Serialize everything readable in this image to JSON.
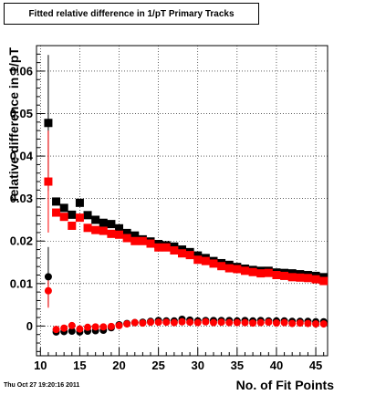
{
  "timestamp": "Thu Oct 27 19:20:16 2011",
  "chart_data": {
    "type": "scatter",
    "title": "Fitted relative difference in 1/pT Primary Tracks",
    "xlabel": "No. of Fit Points",
    "ylabel": "relative difference in 1/pT",
    "xlim": [
      9.5,
      46.5
    ],
    "ylim": [
      -0.007,
      0.066
    ],
    "x_ticks": [
      10,
      15,
      20,
      25,
      30,
      35,
      40,
      45
    ],
    "x_tick_labels": [
      "10",
      "15",
      "20",
      "25",
      "30",
      "35",
      "40",
      "45"
    ],
    "y_ticks": [
      0,
      0.01,
      0.02,
      0.03,
      0.04,
      0.05,
      0.06
    ],
    "y_tick_labels": [
      "0",
      "0.01",
      "0.02",
      "0.03",
      "0.04",
      "0.05",
      "0.06"
    ],
    "grid": true,
    "series": [
      {
        "color": "#000000",
        "marker": "square",
        "x": [
          11,
          12,
          13,
          14,
          15,
          16,
          17,
          18,
          19,
          20,
          21,
          22,
          23,
          24,
          25,
          26,
          27,
          28,
          29,
          30,
          31,
          32,
          33,
          34,
          35,
          36,
          37,
          38,
          39,
          40,
          41,
          42,
          43,
          44,
          45,
          46
        ],
        "y": [
          0.0478,
          0.0293,
          0.0278,
          0.0262,
          0.029,
          0.0261,
          0.025,
          0.0243,
          0.024,
          0.023,
          0.0219,
          0.0213,
          0.0204,
          0.0199,
          0.0193,
          0.019,
          0.0187,
          0.018,
          0.0174,
          0.0166,
          0.016,
          0.0153,
          0.0148,
          0.0144,
          0.0139,
          0.0135,
          0.0132,
          0.013,
          0.013,
          0.0126,
          0.0125,
          0.0124,
          0.0122,
          0.012,
          0.0118,
          0.0115
        ],
        "yerr": [
          0.016,
          0,
          0,
          0,
          0,
          0,
          0,
          0,
          0,
          0,
          0,
          0,
          0,
          0,
          0,
          0,
          0,
          0,
          0,
          0,
          0,
          0,
          0,
          0,
          0,
          0,
          0,
          0,
          0,
          0,
          0,
          0,
          0,
          0,
          0,
          0
        ]
      },
      {
        "color": "#ff0000",
        "marker": "square",
        "x": [
          11,
          12,
          13,
          14,
          15,
          16,
          17,
          18,
          19,
          20,
          21,
          22,
          23,
          24,
          25,
          26,
          27,
          28,
          29,
          30,
          31,
          32,
          33,
          34,
          35,
          36,
          37,
          38,
          39,
          40,
          41,
          42,
          43,
          44,
          45,
          46
        ],
        "y": [
          0.034,
          0.0267,
          0.0257,
          0.0236,
          0.0255,
          0.0231,
          0.0226,
          0.0224,
          0.0217,
          0.0215,
          0.0207,
          0.02,
          0.02,
          0.0194,
          0.0185,
          0.0185,
          0.0178,
          0.0171,
          0.0167,
          0.0156,
          0.0153,
          0.0147,
          0.0141,
          0.0136,
          0.0134,
          0.013,
          0.0127,
          0.0124,
          0.0125,
          0.012,
          0.0118,
          0.0115,
          0.0114,
          0.0113,
          0.011,
          0.0106
        ],
        "yerr": [
          0.012,
          0,
          0,
          0,
          0,
          0,
          0,
          0,
          0,
          0,
          0,
          0,
          0,
          0,
          0,
          0,
          0,
          0,
          0,
          0,
          0,
          0,
          0,
          0,
          0,
          0,
          0,
          0,
          0,
          0,
          0,
          0,
          0,
          0,
          0,
          0
        ]
      },
      {
        "color": "#000000",
        "marker": "circle",
        "x": [
          11,
          12,
          13,
          14,
          15,
          16,
          17,
          18,
          19,
          20,
          21,
          22,
          23,
          24,
          25,
          26,
          27,
          28,
          29,
          30,
          31,
          32,
          33,
          34,
          35,
          36,
          37,
          38,
          39,
          40,
          41,
          42,
          43,
          44,
          45,
          46
        ],
        "y": [
          0.0116,
          -0.0014,
          -0.0013,
          -0.0012,
          -0.0014,
          -0.0012,
          -0.0011,
          -0.001,
          -0.0004,
          0.0003,
          0.0006,
          0.0008,
          0.0009,
          0.0011,
          0.0013,
          0.0012,
          0.0012,
          0.0016,
          0.0014,
          0.0012,
          0.0013,
          0.0013,
          0.0013,
          0.0013,
          0.0012,
          0.0013,
          0.0012,
          0.0013,
          0.0012,
          0.0012,
          0.0012,
          0.0011,
          0.0011,
          0.0011,
          0.001,
          0.001
        ],
        "yerr": [
          0.007,
          0,
          0,
          0,
          0,
          0,
          0,
          0,
          0,
          0,
          0,
          0,
          0,
          0,
          0,
          0,
          0,
          0,
          0,
          0,
          0,
          0,
          0,
          0,
          0,
          0,
          0,
          0,
          0,
          0,
          0,
          0,
          0,
          0,
          0,
          0
        ]
      },
      {
        "color": "#ff0000",
        "marker": "circle",
        "x": [
          11,
          12,
          13,
          14,
          15,
          16,
          17,
          18,
          19,
          20,
          21,
          22,
          23,
          24,
          25,
          26,
          27,
          28,
          29,
          30,
          31,
          32,
          33,
          34,
          35,
          36,
          37,
          38,
          39,
          40,
          41,
          42,
          43,
          44,
          45,
          46
        ],
        "y": [
          0.0083,
          -0.0008,
          -0.0005,
          0.0001,
          -0.0007,
          -0.0003,
          -0.0002,
          -0.0002,
          -0.0001,
          0.0001,
          0.0005,
          0.0008,
          0.0007,
          0.0009,
          0.0009,
          0.0009,
          0.0008,
          0.001,
          0.0009,
          0.0008,
          0.001,
          0.0008,
          0.0009,
          0.0008,
          0.0008,
          0.0008,
          0.0007,
          0.0008,
          0.0009,
          0.0007,
          0.0008,
          0.0006,
          0.0007,
          0.0006,
          0.0005,
          0.0005
        ],
        "yerr": [
          0.004,
          0,
          0,
          0,
          0,
          0,
          0,
          0,
          0,
          0,
          0,
          0,
          0,
          0,
          0,
          0,
          0,
          0,
          0,
          0,
          0,
          0,
          0,
          0,
          0,
          0,
          0,
          0,
          0,
          0,
          0,
          0,
          0,
          0,
          0,
          0
        ]
      }
    ]
  }
}
